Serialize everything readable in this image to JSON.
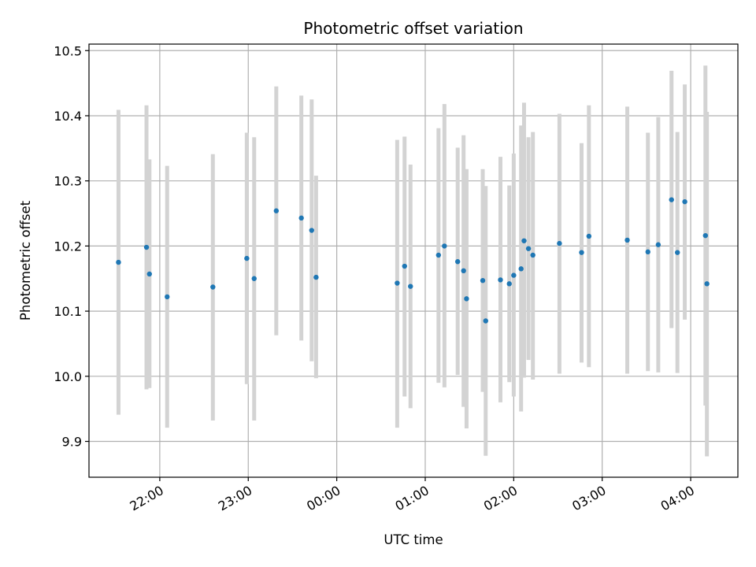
{
  "chart_data": {
    "type": "scatter",
    "title": "Photometric offset variation",
    "xlabel": "UTC time",
    "ylabel": "Photometric offset",
    "x_axis_kind": "time",
    "xlim": [
      "21:12",
      "04:32"
    ],
    "ylim": [
      9.845,
      10.51
    ],
    "grid": true,
    "xticks": [
      "22:00",
      "23:00",
      "00:00",
      "01:00",
      "02:00",
      "03:00",
      "04:00"
    ],
    "yticks": [
      "9.9",
      "10.0",
      "10.1",
      "10.2",
      "10.3",
      "10.4",
      "10.5"
    ],
    "marker_color": "#1f77b4",
    "errorbar_color": "#d3d3d3",
    "points": [
      {
        "time": "21:32",
        "value": 10.175,
        "low": 9.941,
        "high": 10.409
      },
      {
        "time": "21:51",
        "value": 10.198,
        "low": 9.98,
        "high": 10.416
      },
      {
        "time": "21:53",
        "value": 10.157,
        "low": 9.982,
        "high": 10.333
      },
      {
        "time": "22:05",
        "value": 10.122,
        "low": 9.921,
        "high": 10.323
      },
      {
        "time": "22:36",
        "value": 10.137,
        "low": 9.932,
        "high": 10.341
      },
      {
        "time": "22:59",
        "value": 10.181,
        "low": 9.988,
        "high": 10.374
      },
      {
        "time": "23:04",
        "value": 10.15,
        "low": 9.932,
        "high": 10.367
      },
      {
        "time": "23:19",
        "value": 10.254,
        "low": 10.063,
        "high": 10.445
      },
      {
        "time": "23:36",
        "value": 10.243,
        "low": 10.055,
        "high": 10.431
      },
      {
        "time": "23:43",
        "value": 10.224,
        "low": 10.023,
        "high": 10.425
      },
      {
        "time": "23:46",
        "value": 10.152,
        "low": 9.997,
        "high": 10.308
      },
      {
        "time": "00:41",
        "value": 10.143,
        "low": 9.921,
        "high": 10.363
      },
      {
        "time": "00:46",
        "value": 10.169,
        "low": 9.969,
        "high": 10.368
      },
      {
        "time": "00:50",
        "value": 10.138,
        "low": 9.951,
        "high": 10.325
      },
      {
        "time": "01:09",
        "value": 10.186,
        "low": 9.99,
        "high": 10.381
      },
      {
        "time": "01:13",
        "value": 10.2,
        "low": 9.983,
        "high": 10.418
      },
      {
        "time": "01:22",
        "value": 10.176,
        "low": 10.002,
        "high": 10.351
      },
      {
        "time": "01:26",
        "value": 10.162,
        "low": 9.953,
        "high": 10.37
      },
      {
        "time": "01:28",
        "value": 10.119,
        "low": 9.92,
        "high": 10.318
      },
      {
        "time": "01:39",
        "value": 10.147,
        "low": 9.976,
        "high": 10.318
      },
      {
        "time": "01:41",
        "value": 10.085,
        "low": 9.878,
        "high": 10.292
      },
      {
        "time": "01:51",
        "value": 10.148,
        "low": 9.96,
        "high": 10.337
      },
      {
        "time": "01:57",
        "value": 10.142,
        "low": 9.991,
        "high": 10.293
      },
      {
        "time": "02:00",
        "value": 10.155,
        "low": 9.969,
        "high": 10.342
      },
      {
        "time": "02:05",
        "value": 10.165,
        "low": 9.946,
        "high": 10.385
      },
      {
        "time": "02:07",
        "value": 10.208,
        "low": 9.998,
        "high": 10.42
      },
      {
        "time": "02:10",
        "value": 10.196,
        "low": 10.025,
        "high": 10.367
      },
      {
        "time": "02:13",
        "value": 10.186,
        "low": 9.995,
        "high": 10.375
      },
      {
        "time": "02:31",
        "value": 10.204,
        "low": 10.004,
        "high": 10.403
      },
      {
        "time": "02:46",
        "value": 10.19,
        "low": 10.021,
        "high": 10.358
      },
      {
        "time": "02:51",
        "value": 10.215,
        "low": 10.014,
        "high": 10.416
      },
      {
        "time": "03:17",
        "value": 10.209,
        "low": 10.004,
        "high": 10.414
      },
      {
        "time": "03:31",
        "value": 10.191,
        "low": 10.008,
        "high": 10.374
      },
      {
        "time": "03:38",
        "value": 10.202,
        "low": 10.006,
        "high": 10.398
      },
      {
        "time": "03:47",
        "value": 10.271,
        "low": 10.074,
        "high": 10.469
      },
      {
        "time": "03:51",
        "value": 10.19,
        "low": 10.005,
        "high": 10.375
      },
      {
        "time": "03:56",
        "value": 10.268,
        "low": 10.087,
        "high": 10.448
      },
      {
        "time": "04:10",
        "value": 10.216,
        "low": 9.955,
        "high": 10.477
      },
      {
        "time": "04:11",
        "value": 10.142,
        "low": 9.877,
        "high": 10.406
      }
    ]
  }
}
